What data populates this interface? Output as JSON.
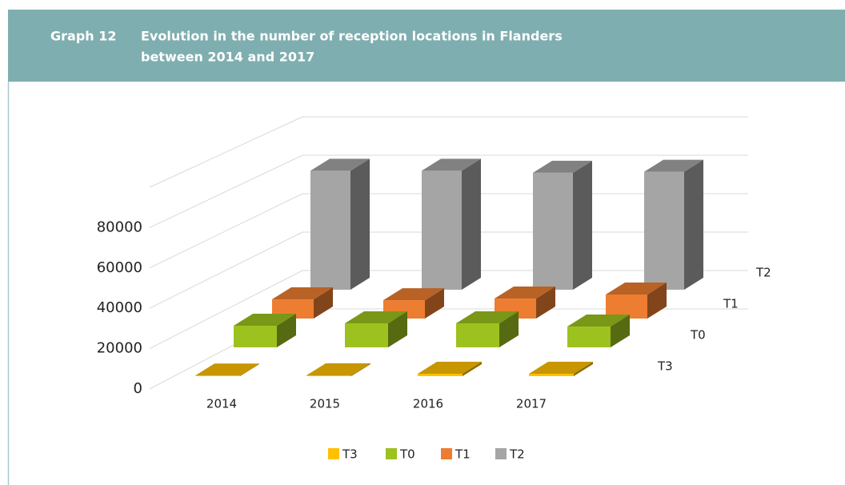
{
  "chart_data": {
    "type": "bar3d",
    "label": "Graph 12",
    "title": [
      "Evolution in the number of reception locations in Flanders",
      "between 2014 and 2017"
    ],
    "categories": [
      "2014",
      "2015",
      "2016",
      "2017"
    ],
    "series": [
      {
        "name": "T3",
        "color": "#ffc000",
        "values": [
          300,
          400,
          1200,
          1200
        ]
      },
      {
        "name": "T0",
        "color": "#9dc11e",
        "values": [
          10700,
          11900,
          11900,
          10300
        ]
      },
      {
        "name": "T1",
        "color": "#ed7d31",
        "values": [
          9500,
          9100,
          9900,
          11900
        ]
      },
      {
        "name": "T2",
        "color": "#a5a5a5",
        "values": [
          59000,
          59000,
          58000,
          58500
        ]
      }
    ],
    "ylim": [
      0,
      100000
    ],
    "yticks": [
      0,
      20000,
      40000,
      60000,
      80000
    ],
    "grid": true,
    "legend": "bottom"
  }
}
